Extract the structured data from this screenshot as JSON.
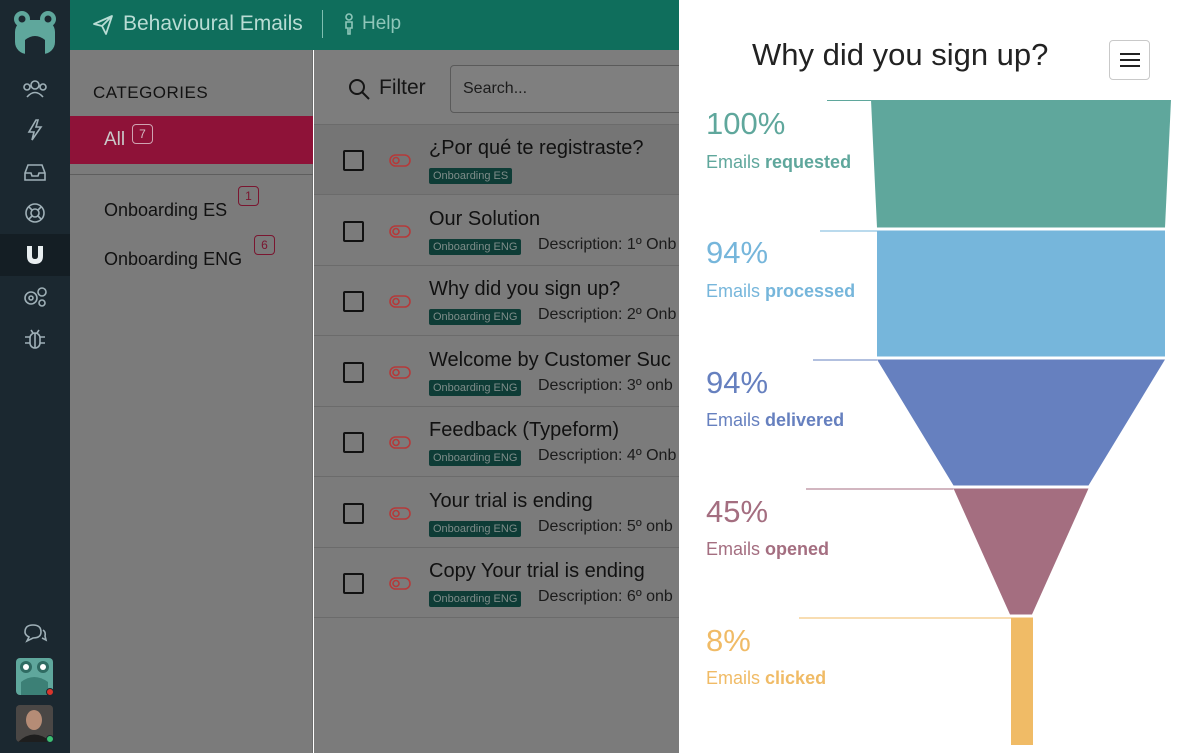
{
  "app": {
    "title": "Behavioural Emails",
    "help": "Help",
    "nav_icons": [
      "users-icon",
      "lightning-icon",
      "inbox-icon",
      "lifebuoy-icon",
      "magnet-icon",
      "settings-gears-icon",
      "bug-icon",
      "chat-icon"
    ]
  },
  "categories": {
    "heading": "CATEGORIES",
    "items": [
      {
        "label": "All",
        "count": "7",
        "active": true
      },
      {
        "label": "Onboarding ES",
        "count": "1"
      },
      {
        "label": "Onboarding ENG",
        "count": "6"
      }
    ]
  },
  "filter": {
    "label": "Filter",
    "search_placeholder": "Search..."
  },
  "emails": [
    {
      "title": "¿Por qué te registraste?",
      "tag": "Onboarding ES",
      "desc": ""
    },
    {
      "title": "Our Solution",
      "tag": "Onboarding ENG",
      "desc": "Description: 1º Onb"
    },
    {
      "title": "Why did you sign up?",
      "tag": "Onboarding ENG",
      "desc": "Description: 2º Onb"
    },
    {
      "title": "Welcome by Customer Suc",
      "tag": "Onboarding ENG",
      "desc": "Description: 3º onb"
    },
    {
      "title": "Feedback (Typeform)",
      "tag": "Onboarding ENG",
      "desc": "Description: 4º Onb"
    },
    {
      "title": "Your trial is ending",
      "tag": "Onboarding ENG",
      "desc": "Description: 5º onb"
    },
    {
      "title": "Copy Your trial is ending",
      "tag": "Onboarding ENG",
      "desc": "Description: 6º onb"
    }
  ],
  "colors": {
    "requested": "#5fa79c",
    "processed": "#76b6db",
    "delivered": "#6680bf",
    "opened": "#a46e80",
    "clicked": "#f0bb66"
  },
  "chart_data": {
    "type": "funnel",
    "title": "Why did you sign up?",
    "stages": [
      {
        "pct": "100%",
        "prefix": "Emails",
        "name": "requested",
        "value": 100
      },
      {
        "pct": "94%",
        "prefix": "Emails",
        "name": "processed",
        "value": 94
      },
      {
        "pct": "94%",
        "prefix": "Emails",
        "name": "delivered",
        "value": 94
      },
      {
        "pct": "45%",
        "prefix": "Emails",
        "name": "opened",
        "value": 45
      },
      {
        "pct": "8%",
        "prefix": "Emails",
        "name": "clicked",
        "value": 8
      }
    ]
  }
}
